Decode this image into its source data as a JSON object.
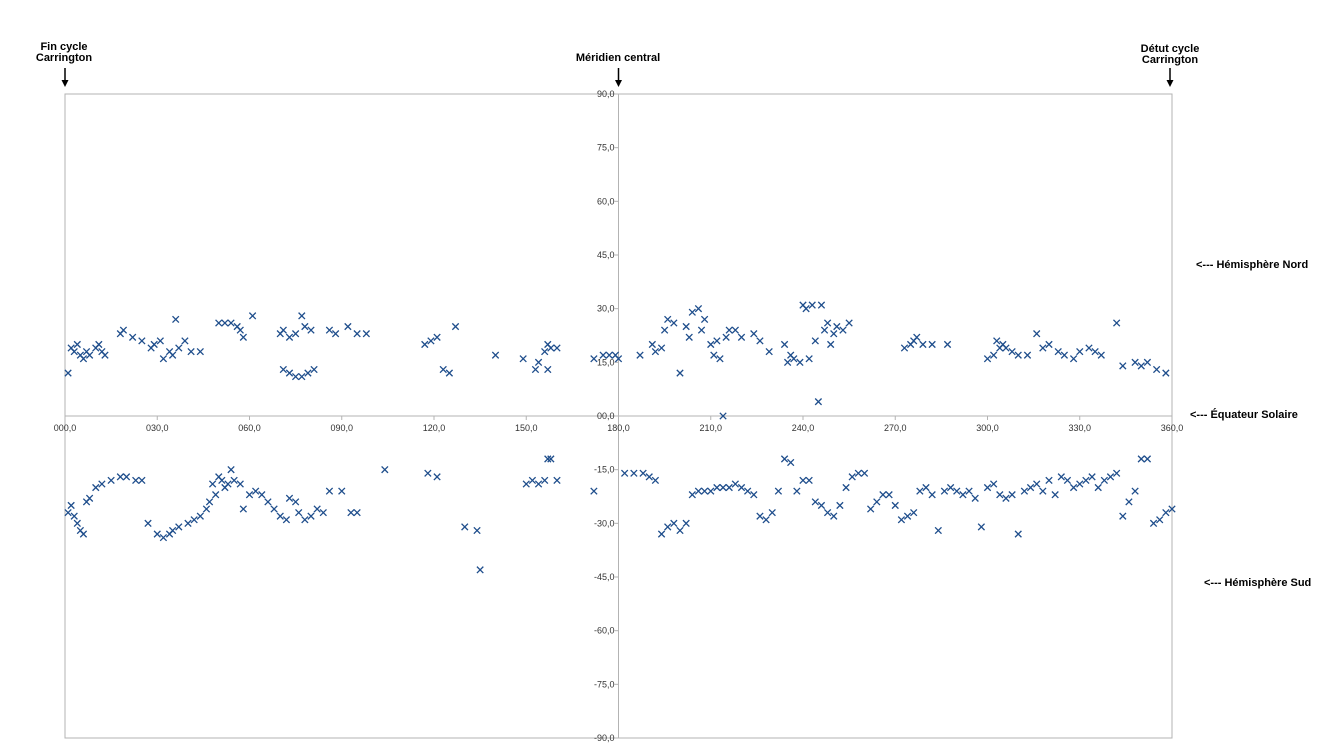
{
  "header": {
    "left_line1": "Fin cycle",
    "left_line2": "Carrington",
    "center": "Méridien central",
    "right_line1": "Détut cycle",
    "right_line2": "Carrington"
  },
  "side_labels": {
    "north": "<--- Hémisphère Nord",
    "equator": "<--- Équateur Solaire",
    "south": "<--- Hémisphère Sud"
  },
  "chart_data": {
    "type": "scatter",
    "title": "",
    "xlabel": "",
    "ylabel": "",
    "xlim": [
      0,
      360
    ],
    "ylim": [
      -90,
      90
    ],
    "x_ticks": [
      "000,0",
      "030,0",
      "060,0",
      "090,0",
      "120,0",
      "150,0",
      "180,0",
      "210,0",
      "240,0",
      "270,0",
      "300,0",
      "330,0",
      "360,0"
    ],
    "y_ticks": [
      "90,0",
      "75,0",
      "60,0",
      "45,0",
      "30,0",
      "15,0",
      "00,0",
      "-15,0",
      "-30,0",
      "-45,0",
      "-60,0",
      "-75,0",
      "-90,0"
    ],
    "grid": false,
    "marker": "x",
    "colors": {
      "marker": "#1f4e8c",
      "axis": "#b3b3b3",
      "label": "#333333"
    },
    "series": [
      {
        "points": [
          [
            1,
            12
          ],
          [
            2,
            19
          ],
          [
            3,
            18
          ],
          [
            4,
            20
          ],
          [
            5,
            17
          ],
          [
            6,
            16
          ],
          [
            7,
            18
          ],
          [
            8,
            17
          ],
          [
            10,
            19
          ],
          [
            11,
            20
          ],
          [
            12,
            18
          ],
          [
            13,
            17
          ],
          [
            18,
            23
          ],
          [
            19,
            24
          ],
          [
            22,
            22
          ],
          [
            25,
            21
          ],
          [
            28,
            19
          ],
          [
            29,
            20
          ],
          [
            31,
            21
          ],
          [
            32,
            16
          ],
          [
            34,
            18
          ],
          [
            35,
            17
          ],
          [
            36,
            27
          ],
          [
            37,
            19
          ],
          [
            39,
            21
          ],
          [
            41,
            18
          ],
          [
            44,
            18
          ],
          [
            50,
            26
          ],
          [
            52,
            26
          ],
          [
            54,
            26
          ],
          [
            56,
            25
          ],
          [
            57,
            24
          ],
          [
            58,
            22
          ],
          [
            61,
            28
          ],
          [
            70,
            23
          ],
          [
            71,
            24
          ],
          [
            73,
            22
          ],
          [
            75,
            23
          ],
          [
            77,
            28
          ],
          [
            78,
            25
          ],
          [
            80,
            24
          ],
          [
            86,
            24
          ],
          [
            88,
            23
          ],
          [
            92,
            25
          ],
          [
            95,
            23
          ],
          [
            98,
            23
          ],
          [
            71,
            13
          ],
          [
            73,
            12
          ],
          [
            75,
            11
          ],
          [
            77,
            11
          ],
          [
            79,
            12
          ],
          [
            81,
            13
          ],
          [
            117,
            20
          ],
          [
            119,
            21
          ],
          [
            121,
            22
          ],
          [
            123,
            13
          ],
          [
            125,
            12
          ],
          [
            127,
            25
          ],
          [
            140,
            17
          ],
          [
            149,
            16
          ],
          [
            153,
            13
          ],
          [
            154,
            15
          ],
          [
            156,
            18
          ],
          [
            157,
            20
          ],
          [
            158,
            19
          ],
          [
            160,
            19
          ],
          [
            157,
            13
          ],
          [
            172,
            16
          ],
          [
            175,
            17
          ],
          [
            177,
            17
          ],
          [
            179,
            17
          ],
          [
            180,
            16
          ],
          [
            187,
            17
          ],
          [
            191,
            20
          ],
          [
            192,
            18
          ],
          [
            194,
            19
          ],
          [
            195,
            24
          ],
          [
            196,
            27
          ],
          [
            198,
            26
          ],
          [
            200,
            12
          ],
          [
            202,
            25
          ],
          [
            203,
            22
          ],
          [
            204,
            29
          ],
          [
            206,
            30
          ],
          [
            207,
            24
          ],
          [
            208,
            27
          ],
          [
            210,
            20
          ],
          [
            211,
            17
          ],
          [
            212,
            21
          ],
          [
            213,
            16
          ],
          [
            214,
            0
          ],
          [
            215,
            22
          ],
          [
            216,
            24
          ],
          [
            218,
            24
          ],
          [
            220,
            22
          ],
          [
            224,
            23
          ],
          [
            226,
            21
          ],
          [
            229,
            18
          ],
          [
            234,
            20
          ],
          [
            235,
            15
          ],
          [
            236,
            17
          ],
          [
            237,
            16
          ],
          [
            239,
            15
          ],
          [
            240,
            31
          ],
          [
            241,
            30
          ],
          [
            242,
            16
          ],
          [
            243,
            31
          ],
          [
            244,
            21
          ],
          [
            245,
            4
          ],
          [
            246,
            31
          ],
          [
            247,
            24
          ],
          [
            248,
            26
          ],
          [
            249,
            20
          ],
          [
            250,
            23
          ],
          [
            251,
            25
          ],
          [
            253,
            24
          ],
          [
            255,
            26
          ],
          [
            273,
            19
          ],
          [
            275,
            20
          ],
          [
            276,
            21
          ],
          [
            277,
            22
          ],
          [
            279,
            20
          ],
          [
            282,
            20
          ],
          [
            287,
            20
          ],
          [
            300,
            16
          ],
          [
            302,
            17
          ],
          [
            303,
            21
          ],
          [
            304,
            19
          ],
          [
            305,
            20
          ],
          [
            306,
            19
          ],
          [
            308,
            18
          ],
          [
            310,
            17
          ],
          [
            313,
            17
          ],
          [
            316,
            23
          ],
          [
            318,
            19
          ],
          [
            320,
            20
          ],
          [
            323,
            18
          ],
          [
            325,
            17
          ],
          [
            328,
            16
          ],
          [
            330,
            18
          ],
          [
            333,
            19
          ],
          [
            335,
            18
          ],
          [
            337,
            17
          ],
          [
            342,
            26
          ],
          [
            344,
            14
          ],
          [
            348,
            15
          ],
          [
            350,
            14
          ],
          [
            352,
            15
          ],
          [
            355,
            13
          ],
          [
            358,
            12
          ],
          [
            1,
            -27
          ],
          [
            2,
            -25
          ],
          [
            3,
            -28
          ],
          [
            4,
            -30
          ],
          [
            5,
            -32
          ],
          [
            6,
            -33
          ],
          [
            7,
            -24
          ],
          [
            8,
            -23
          ],
          [
            10,
            -20
          ],
          [
            12,
            -19
          ],
          [
            15,
            -18
          ],
          [
            18,
            -17
          ],
          [
            20,
            -17
          ],
          [
            23,
            -18
          ],
          [
            25,
            -18
          ],
          [
            27,
            -30
          ],
          [
            30,
            -33
          ],
          [
            32,
            -34
          ],
          [
            34,
            -33
          ],
          [
            35,
            -32
          ],
          [
            37,
            -31
          ],
          [
            40,
            -30
          ],
          [
            42,
            -29
          ],
          [
            44,
            -28
          ],
          [
            46,
            -26
          ],
          [
            47,
            -24
          ],
          [
            48,
            -19
          ],
          [
            49,
            -22
          ],
          [
            50,
            -17
          ],
          [
            51,
            -18
          ],
          [
            52,
            -20
          ],
          [
            53,
            -19
          ],
          [
            54,
            -15
          ],
          [
            55,
            -18
          ],
          [
            57,
            -19
          ],
          [
            58,
            -26
          ],
          [
            60,
            -22
          ],
          [
            62,
            -21
          ],
          [
            64,
            -22
          ],
          [
            66,
            -24
          ],
          [
            68,
            -26
          ],
          [
            70,
            -28
          ],
          [
            72,
            -29
          ],
          [
            73,
            -23
          ],
          [
            75,
            -24
          ],
          [
            76,
            -27
          ],
          [
            78,
            -29
          ],
          [
            80,
            -28
          ],
          [
            82,
            -26
          ],
          [
            84,
            -27
          ],
          [
            86,
            -21
          ],
          [
            90,
            -21
          ],
          [
            93,
            -27
          ],
          [
            95,
            -27
          ],
          [
            104,
            -15
          ],
          [
            118,
            -16
          ],
          [
            121,
            -17
          ],
          [
            130,
            -31
          ],
          [
            134,
            -32
          ],
          [
            135,
            -43
          ],
          [
            150,
            -19
          ],
          [
            152,
            -18
          ],
          [
            154,
            -19
          ],
          [
            156,
            -18
          ],
          [
            157,
            -12
          ],
          [
            158,
            -12
          ],
          [
            160,
            -18
          ],
          [
            172,
            -21
          ],
          [
            182,
            -16
          ],
          [
            185,
            -16
          ],
          [
            188,
            -16
          ],
          [
            190,
            -17
          ],
          [
            192,
            -18
          ],
          [
            194,
            -33
          ],
          [
            196,
            -31
          ],
          [
            198,
            -30
          ],
          [
            200,
            -32
          ],
          [
            202,
            -30
          ],
          [
            204,
            -22
          ],
          [
            206,
            -21
          ],
          [
            208,
            -21
          ],
          [
            210,
            -21
          ],
          [
            212,
            -20
          ],
          [
            214,
            -20
          ],
          [
            216,
            -20
          ],
          [
            218,
            -19
          ],
          [
            220,
            -20
          ],
          [
            222,
            -21
          ],
          [
            224,
            -22
          ],
          [
            226,
            -28
          ],
          [
            228,
            -29
          ],
          [
            230,
            -27
          ],
          [
            232,
            -21
          ],
          [
            234,
            -12
          ],
          [
            236,
            -13
          ],
          [
            238,
            -21
          ],
          [
            240,
            -18
          ],
          [
            242,
            -18
          ],
          [
            244,
            -24
          ],
          [
            246,
            -25
          ],
          [
            248,
            -27
          ],
          [
            250,
            -28
          ],
          [
            252,
            -25
          ],
          [
            254,
            -20
          ],
          [
            256,
            -17
          ],
          [
            258,
            -16
          ],
          [
            260,
            -16
          ],
          [
            262,
            -26
          ],
          [
            264,
            -24
          ],
          [
            266,
            -22
          ],
          [
            268,
            -22
          ],
          [
            270,
            -25
          ],
          [
            272,
            -29
          ],
          [
            274,
            -28
          ],
          [
            276,
            -27
          ],
          [
            278,
            -21
          ],
          [
            280,
            -20
          ],
          [
            282,
            -22
          ],
          [
            284,
            -32
          ],
          [
            286,
            -21
          ],
          [
            288,
            -20
          ],
          [
            290,
            -21
          ],
          [
            292,
            -22
          ],
          [
            294,
            -21
          ],
          [
            296,
            -23
          ],
          [
            298,
            -31
          ],
          [
            300,
            -20
          ],
          [
            302,
            -19
          ],
          [
            304,
            -22
          ],
          [
            306,
            -23
          ],
          [
            308,
            -22
          ],
          [
            310,
            -33
          ],
          [
            312,
            -21
          ],
          [
            314,
            -20
          ],
          [
            316,
            -19
          ],
          [
            318,
            -21
          ],
          [
            320,
            -18
          ],
          [
            322,
            -22
          ],
          [
            324,
            -17
          ],
          [
            326,
            -18
          ],
          [
            328,
            -20
          ],
          [
            330,
            -19
          ],
          [
            332,
            -18
          ],
          [
            334,
            -17
          ],
          [
            336,
            -20
          ],
          [
            338,
            -18
          ],
          [
            340,
            -17
          ],
          [
            342,
            -16
          ],
          [
            344,
            -28
          ],
          [
            346,
            -24
          ],
          [
            348,
            -21
          ],
          [
            350,
            -12
          ],
          [
            352,
            -12
          ],
          [
            354,
            -30
          ],
          [
            356,
            -29
          ],
          [
            358,
            -27
          ],
          [
            360,
            -26
          ]
        ]
      }
    ]
  }
}
